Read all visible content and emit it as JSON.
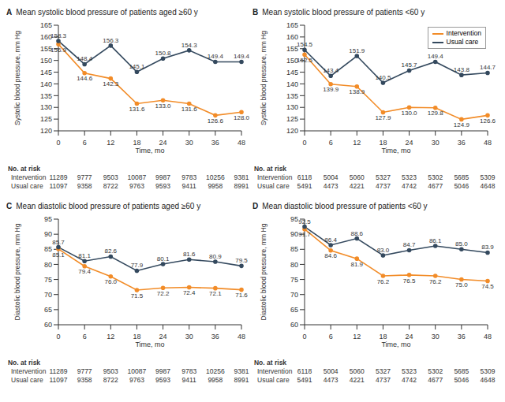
{
  "chart_data": [
    {
      "type": "line",
      "panel": "A",
      "title": "Mean systolic blood pressure of patients aged ≥60 y",
      "x_label": "Time, mo",
      "y_label": "Systolic blood pressure, mm Hg",
      "categories": [
        "0",
        "6",
        "12",
        "18",
        "24",
        "30",
        "36",
        "48"
      ],
      "ylim": [
        120,
        165
      ],
      "yticks": [
        120,
        125,
        130,
        135,
        140,
        145,
        150,
        155,
        160,
        165
      ],
      "grid": false,
      "data_labels": true,
      "series": [
        {
          "name": "Intervention",
          "color": "#f28c28",
          "marker": "circle",
          "values": [
            156.9,
            144.6,
            142.3,
            131.6,
            133.0,
            131.6,
            126.6,
            128.0
          ],
          "value_labels": [
            "156.9",
            "144.6",
            "142.3",
            "131.6",
            "133.0",
            "131.6",
            "126.6",
            "128.0"
          ]
        },
        {
          "name": "Usual care",
          "color": "#34495e",
          "marker": "circle",
          "values": [
            158.3,
            148.4,
            156.3,
            145.1,
            150.8,
            154.3,
            149.4,
            149.4
          ],
          "value_labels": [
            "158.3",
            "148.4",
            "156.3",
            "145.1",
            "150.8",
            "154.3",
            "149.4",
            "149.4"
          ]
        }
      ],
      "at_risk": {
        "label": "No. at risk",
        "rows": [
          {
            "name": "Intervention",
            "values": [
              11289,
              9777,
              9503,
              10087,
              9987,
              9783,
              10256,
              9381
            ]
          },
          {
            "name": "Usual care",
            "values": [
              11097,
              9358,
              8722,
              9763,
              9593,
              9411,
              9958,
              8991
            ]
          }
        ]
      }
    },
    {
      "type": "line",
      "panel": "B",
      "title": "Mean systolic blood pressure of patients <60 y",
      "x_label": "Time, mo",
      "y_label": "Systolic blood pressure, mm Hg",
      "categories": [
        "0",
        "6",
        "12",
        "18",
        "24",
        "30",
        "36",
        "48"
      ],
      "ylim": [
        120,
        165
      ],
      "yticks": [
        120,
        125,
        130,
        135,
        140,
        145,
        150,
        155,
        160,
        165
      ],
      "grid": false,
      "data_labels": true,
      "legend": "upper right",
      "series": [
        {
          "name": "Intervention",
          "color": "#f28c28",
          "marker": "circle",
          "values": [
            152.5,
            139.9,
            138.9,
            127.9,
            130.0,
            129.8,
            124.9,
            126.6
          ],
          "value_labels": [
            "152.5",
            "139.9",
            "138.9",
            "127.9",
            "130.0",
            "129.8",
            "124.9",
            "126.6"
          ]
        },
        {
          "name": "Usual care",
          "color": "#34495e",
          "marker": "circle",
          "values": [
            154.5,
            143.4,
            151.9,
            140.5,
            145.7,
            149.4,
            143.8,
            144.7
          ],
          "value_labels": [
            "154.5",
            "143.4",
            "151.9",
            "140.5",
            "145.7",
            "149.4",
            "143.8",
            "144.7"
          ]
        }
      ],
      "at_risk": {
        "label": "No. at risk",
        "rows": [
          {
            "name": "Intervention",
            "values": [
              6118,
              5004,
              5060,
              5327,
              5323,
              5302,
              5685,
              5309
            ]
          },
          {
            "name": "Usual care",
            "values": [
              5491,
              4473,
              4221,
              4737,
              4742,
              4677,
              5046,
              4648
            ]
          }
        ]
      }
    },
    {
      "type": "line",
      "panel": "C",
      "title": "Mean diastolic blood pressure of patients aged ≥60 y",
      "x_label": "Time, mo",
      "y_label": "Diastolic blood pressure, mm Hg",
      "categories": [
        "0",
        "6",
        "12",
        "18",
        "24",
        "30",
        "36",
        "48"
      ],
      "ylim": [
        60,
        95
      ],
      "yticks": [
        60,
        65,
        70,
        75,
        80,
        85,
        90,
        95
      ],
      "grid": false,
      "data_labels": true,
      "series": [
        {
          "name": "Intervention",
          "color": "#f28c28",
          "marker": "circle",
          "values": [
            85.1,
            79.4,
            76.0,
            71.5,
            72.2,
            72.4,
            72.1,
            71.6
          ],
          "value_labels": [
            "85.1",
            "79.4",
            "76.0",
            "71.5",
            "72.2",
            "72.4",
            "72.1",
            "71.6"
          ]
        },
        {
          "name": "Usual care",
          "color": "#34495e",
          "marker": "circle",
          "values": [
            85.7,
            81.1,
            82.6,
            77.9,
            80.1,
            81.6,
            80.9,
            79.5
          ],
          "value_labels": [
            "85.7",
            "81.1",
            "82.6",
            "77.9",
            "80.1",
            "81.6",
            "80.9",
            "79.5"
          ]
        }
      ],
      "at_risk": {
        "label": "No. at risk",
        "rows": [
          {
            "name": "Intervention",
            "values": [
              11289,
              9777,
              9503,
              10087,
              9987,
              9783,
              10256,
              9381
            ]
          },
          {
            "name": "Usual care",
            "values": [
              11097,
              9358,
              8722,
              9763,
              9593,
              9411,
              9958,
              8991
            ]
          }
        ]
      }
    },
    {
      "type": "line",
      "panel": "D",
      "title": "Mean diastolic blood pressure of patients <60 y",
      "x_label": "Time, mo",
      "y_label": "Diastolic blood pressure, mm Hg",
      "categories": [
        "0",
        "6",
        "12",
        "18",
        "24",
        "30",
        "36",
        "48"
      ],
      "ylim": [
        60,
        95
      ],
      "yticks": [
        60,
        65,
        70,
        75,
        80,
        85,
        90,
        95
      ],
      "grid": false,
      "data_labels": true,
      "series": [
        {
          "name": "Intervention",
          "color": "#f28c28",
          "marker": "circle",
          "values": [
            91.7,
            84.6,
            81.9,
            76.2,
            76.5,
            76.2,
            75.0,
            74.5
          ],
          "value_labels": [
            "91.7",
            "84.6",
            "81.9",
            "76.2",
            "76.5",
            "76.2",
            "75.0",
            "74.5"
          ]
        },
        {
          "name": "Usual care",
          "color": "#34495e",
          "marker": "circle",
          "values": [
            92.5,
            86.4,
            88.6,
            83.0,
            84.7,
            86.1,
            85.0,
            83.9
          ],
          "value_labels": [
            "92.5",
            "86.4",
            "88.6",
            "83.0",
            "84.7",
            "86.1",
            "85.0",
            "83.9"
          ]
        }
      ],
      "at_risk": {
        "label": "No. at risk",
        "rows": [
          {
            "name": "Intervention",
            "values": [
              6118,
              5004,
              5060,
              5327,
              5323,
              5302,
              5685,
              5309
            ]
          },
          {
            "name": "Usual care",
            "values": [
              5491,
              4473,
              4221,
              4737,
              4742,
              4677,
              5046,
              4648
            ]
          }
        ]
      }
    }
  ]
}
